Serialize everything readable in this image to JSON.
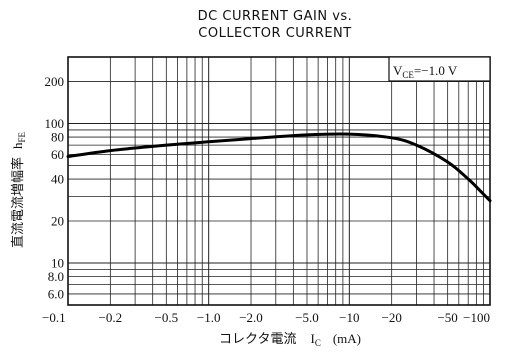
{
  "chart_data": {
    "type": "line",
    "title_lines": [
      "DC CURRENT GAIN vs.",
      "COLLECTOR CURRENT"
    ],
    "xlabel": "コレクタ電流",
    "xlabel_symbol": "I",
    "xlabel_subscript": "C",
    "xlabel_unit": "(mA)",
    "ylabel": "直流電流増幅率",
    "ylabel_symbol": "h",
    "ylabel_subscript": "FE",
    "condition_prefix": "V",
    "condition_subscript": "CE",
    "condition_value": "=−1.0 V",
    "x_scale": "log",
    "y_scale": "log",
    "xlim": [
      -0.1,
      -100
    ],
    "ylim": [
      5,
      300
    ],
    "x_tick_values": [
      -0.1,
      -0.2,
      -0.5,
      -1.0,
      -2.0,
      -5.0,
      -10,
      -20,
      -50,
      -100
    ],
    "x_tick_labels": [
      "−0.1",
      "−0.2",
      "−0.5",
      "−1.0",
      "−2.0",
      "−5.0",
      "−10",
      "−20",
      "−50",
      "−100"
    ],
    "y_tick_values": [
      6,
      8,
      10,
      20,
      40,
      60,
      80,
      100,
      200
    ],
    "y_tick_labels": [
      "6.0",
      "8.0",
      "10",
      "20",
      "40",
      "60",
      "80",
      "100",
      "200"
    ],
    "grid": true,
    "series": [
      {
        "points": [
          [
            -0.1,
            58
          ],
          [
            -0.2,
            64
          ],
          [
            -0.5,
            70
          ],
          [
            -1.0,
            74
          ],
          [
            -2.0,
            78
          ],
          [
            -5.0,
            83
          ],
          [
            -10,
            84
          ],
          [
            -20,
            79
          ],
          [
            -30,
            70
          ],
          [
            -50,
            53
          ],
          [
            -70,
            40
          ],
          [
            -85,
            33
          ],
          [
            -100,
            28
          ]
        ]
      }
    ]
  }
}
